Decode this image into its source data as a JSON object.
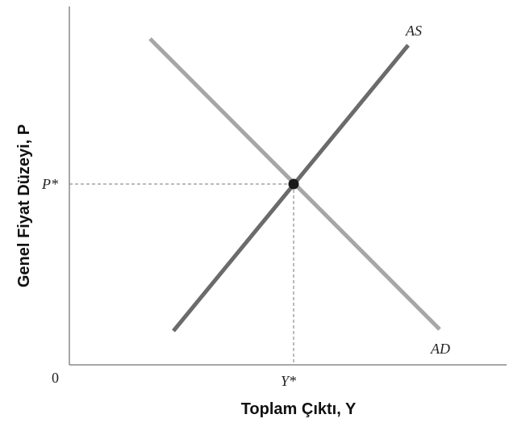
{
  "axes": {
    "y_label": "Genel Fiyat Düzeyi, P",
    "x_label": "Toplam Çıktı, Y",
    "origin_label": "0",
    "p_star_label": "P*",
    "y_star_label": "Y*"
  },
  "curves": {
    "as_label": "AS",
    "ad_label": "AD",
    "as_color": "#6b6b6b",
    "ad_color": "#a6a6a6"
  },
  "equilibrium": {
    "point_color": "#1a1a1a",
    "guide_color": "#777777"
  }
}
